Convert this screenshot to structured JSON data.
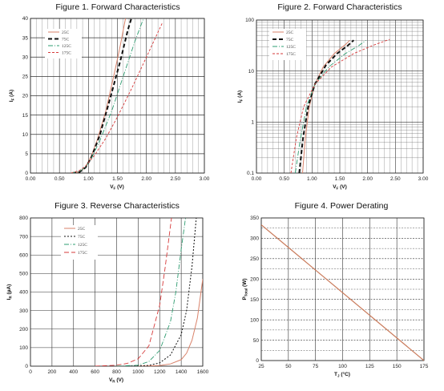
{
  "chart_data": [
    {
      "type": "line",
      "title": "Figure 1. Forward Characteristics",
      "xlabel_main": "V",
      "xlabel_sub": "F",
      "xlabel_unit": " (V)",
      "ylabel_main": "I",
      "ylabel_sub": "F",
      "ylabel_unit": " (A)",
      "xlim": [
        0,
        3
      ],
      "ylim": [
        0,
        40
      ],
      "x_ticks": [
        "0.00",
        "0.50",
        "1.00",
        "1.50",
        "2.00",
        "2.50",
        "3.00"
      ],
      "y_ticks": [
        "0",
        "5",
        "10",
        "15",
        "20",
        "25",
        "30",
        "35",
        "40"
      ],
      "legend_position": "top-left",
      "series": [
        {
          "name": "25C",
          "color": "#d9826a",
          "dash": "",
          "width": 1,
          "points": [
            [
              0.72,
              0
            ],
            [
              0.85,
              0.3
            ],
            [
              0.95,
              1.5
            ],
            [
              1.05,
              4.5
            ],
            [
              1.15,
              8.5
            ],
            [
              1.3,
              16
            ],
            [
              1.45,
              26
            ],
            [
              1.55,
              33
            ],
            [
              1.64,
              40
            ]
          ]
        },
        {
          "name": "75C",
          "color": "#111111",
          "dash": "5,3",
          "width": 2,
          "points": [
            [
              0.72,
              0
            ],
            [
              0.85,
              0.3
            ],
            [
              0.95,
              1.4
            ],
            [
              1.05,
              4
            ],
            [
              1.2,
              10
            ],
            [
              1.35,
              18
            ],
            [
              1.55,
              29
            ],
            [
              1.68,
              37
            ],
            [
              1.74,
              40
            ]
          ]
        },
        {
          "name": "125C",
          "color": "#2e9c70",
          "dash": "6,2,1,2",
          "width": 0.9,
          "points": [
            [
              0.7,
              0
            ],
            [
              0.85,
              0.5
            ],
            [
              0.95,
              1.5
            ],
            [
              1.05,
              3.8
            ],
            [
              1.2,
              8.5
            ],
            [
              1.4,
              16
            ],
            [
              1.6,
              25
            ],
            [
              1.8,
              34
            ],
            [
              1.95,
              40
            ]
          ]
        },
        {
          "name": "175C",
          "color": "#d63a3a",
          "dash": "3,2",
          "width": 0.9,
          "points": [
            [
              0.7,
              0
            ],
            [
              0.85,
              0.7
            ],
            [
              0.95,
              1.8
            ],
            [
              1.1,
              4.5
            ],
            [
              1.3,
              9
            ],
            [
              1.5,
              14.5
            ],
            [
              1.75,
              22
            ],
            [
              2.0,
              30
            ],
            [
              2.28,
              39
            ]
          ]
        }
      ]
    },
    {
      "type": "line",
      "title": "Figure 2. Forward Characteristics",
      "xlabel_main": "V",
      "xlabel_sub": "F",
      "xlabel_unit": " (V)",
      "ylabel_main": "I",
      "ylabel_sub": "F",
      "ylabel_unit": " (A)",
      "xlim": [
        0,
        3
      ],
      "ylim": [
        0.1,
        100
      ],
      "yscale": "log",
      "x_ticks": [
        "0.00",
        "0.50",
        "1.00",
        "1.50",
        "2.00",
        "2.50",
        "3.00"
      ],
      "y_ticks": [
        "0.1",
        "1",
        "10",
        "100"
      ],
      "legend_position": "top-left",
      "series": [
        {
          "name": "25C",
          "color": "#d9826a",
          "dash": "",
          "width": 1,
          "points": [
            [
              0.83,
              0.1
            ],
            [
              0.88,
              0.5
            ],
            [
              0.95,
              2
            ],
            [
              1.05,
              5.5
            ],
            [
              1.2,
              12
            ],
            [
              1.4,
              22
            ],
            [
              1.6,
              33
            ],
            [
              1.68,
              40
            ]
          ]
        },
        {
          "name": "75C",
          "color": "#111111",
          "dash": "5,3",
          "width": 2,
          "points": [
            [
              0.77,
              0.1
            ],
            [
              0.84,
              0.5
            ],
            [
              0.93,
              2
            ],
            [
              1.05,
              5.5
            ],
            [
              1.25,
              13
            ],
            [
              1.45,
              22
            ],
            [
              1.65,
              32
            ],
            [
              1.75,
              40
            ]
          ]
        },
        {
          "name": "125C",
          "color": "#2e9c70",
          "dash": "6,2,1,2",
          "width": 0.9,
          "points": [
            [
              0.7,
              0.1
            ],
            [
              0.78,
              0.4
            ],
            [
              0.9,
              2
            ],
            [
              1.05,
              5.5
            ],
            [
              1.3,
              12
            ],
            [
              1.6,
              22
            ],
            [
              1.85,
              32
            ],
            [
              1.97,
              40
            ]
          ]
        },
        {
          "name": "175C",
          "color": "#d63a3a",
          "dash": "3,2",
          "width": 0.9,
          "points": [
            [
              0.62,
              0.1
            ],
            [
              0.72,
              0.5
            ],
            [
              0.85,
              2
            ],
            [
              1.05,
              5.5
            ],
            [
              1.35,
              12
            ],
            [
              1.75,
              22
            ],
            [
              2.1,
              32
            ],
            [
              2.4,
              42
            ]
          ]
        }
      ]
    },
    {
      "type": "line",
      "title": "Figure 3. Reverse Characteristics",
      "xlabel_main": "V",
      "xlabel_sub": "R",
      "xlabel_unit": " (V)",
      "ylabel_main": "I",
      "ylabel_sub": "R",
      "ylabel_unit": " (µA)",
      "xlim": [
        0,
        1600
      ],
      "ylim": [
        0,
        800
      ],
      "x_ticks": [
        "0",
        "200",
        "400",
        "600",
        "800",
        "1000",
        "1200",
        "1400",
        "1600"
      ],
      "y_ticks": [
        "0",
        "100",
        "200",
        "300",
        "400",
        "500",
        "600",
        "700",
        "800"
      ],
      "legend_position": "top-left",
      "series": [
        {
          "name": "25C",
          "color": "#d9826a",
          "dash": "",
          "width": 1,
          "points": [
            [
              1000,
              0
            ],
            [
              1200,
              3
            ],
            [
              1300,
              12
            ],
            [
              1400,
              35
            ],
            [
              1450,
              70
            ],
            [
              1500,
              140
            ],
            [
              1550,
              260
            ],
            [
              1600,
              470
            ]
          ]
        },
        {
          "name": "75C",
          "color": "#111111",
          "dash": "2,2",
          "width": 1,
          "points": [
            [
              900,
              0
            ],
            [
              1100,
              4
            ],
            [
              1200,
              18
            ],
            [
              1300,
              60
            ],
            [
              1400,
              170
            ],
            [
              1450,
              300
            ],
            [
              1500,
              540
            ],
            [
              1540,
              800
            ]
          ]
        },
        {
          "name": "125C",
          "color": "#2e9c70",
          "dash": "6,2,1,2",
          "width": 0.9,
          "points": [
            [
              800,
              0
            ],
            [
              1000,
              5
            ],
            [
              1100,
              25
            ],
            [
              1200,
              85
            ],
            [
              1300,
              240
            ],
            [
              1350,
              400
            ],
            [
              1400,
              630
            ],
            [
              1440,
              800
            ]
          ]
        },
        {
          "name": "175C",
          "color": "#d63a3a",
          "dash": "6,3",
          "width": 0.9,
          "points": [
            [
              600,
              0
            ],
            [
              800,
              5
            ],
            [
              900,
              15
            ],
            [
              1000,
              40
            ],
            [
              1100,
              110
            ],
            [
              1200,
              330
            ],
            [
              1250,
              530
            ],
            [
              1310,
              800
            ]
          ]
        }
      ]
    },
    {
      "type": "line",
      "title": "Figure 4. Power Derating",
      "xlabel_main": "T",
      "xlabel_sub": "J",
      "xlabel_unit": "  (°C)",
      "ylabel_main": "P",
      "ylabel_sub": "Total",
      "ylabel_unit": " (W)",
      "xlim": [
        25,
        175
      ],
      "ylim": [
        0,
        350
      ],
      "x_ticks": [
        "25",
        "50",
        "75",
        "100",
        "125",
        "150",
        "175"
      ],
      "y_ticks": [
        "0",
        "50",
        "100",
        "150",
        "200",
        "250",
        "300",
        "350"
      ],
      "series": [
        {
          "color": "#c97a5a",
          "dash": "",
          "width": 1.2,
          "points": [
            [
              25,
              333
            ],
            [
              175,
              0
            ]
          ]
        }
      ]
    }
  ]
}
